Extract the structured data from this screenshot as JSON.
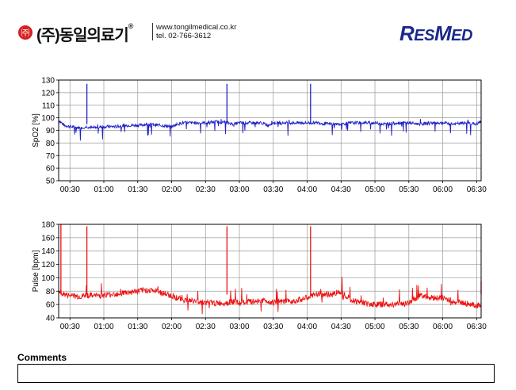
{
  "header": {
    "logo_symbol": "㈜",
    "company_name": "(주)동일의료기",
    "registered_mark": "®",
    "website": "www.tongilmedical.co.kr",
    "phone": "tel. 02-766-3612",
    "brand_logo": "RESMED",
    "brand_color": "#1b2a8a"
  },
  "comments": {
    "label": "Comments",
    "value": ""
  },
  "chart_data": [
    {
      "type": "line",
      "title": "",
      "xlabel": "",
      "ylabel": "SpO2 [%]",
      "ylim": [
        50,
        130
      ],
      "yticks": [
        50,
        60,
        70,
        80,
        90,
        100,
        110,
        120,
        130
      ],
      "xlim_minutes": [
        20,
        394
      ],
      "xticks": [
        "00:30",
        "01:00",
        "01:30",
        "02:00",
        "02:30",
        "03:00",
        "03:30",
        "04:00",
        "04:30",
        "05:00",
        "05:30",
        "06:00",
        "06:30"
      ],
      "grid": true,
      "series": [
        {
          "color": "#2020c8",
          "x": [
            "00:20",
            "00:25",
            "00:30",
            "00:40",
            "00:45",
            "00:50",
            "01:00",
            "01:10",
            "01:20",
            "01:30",
            "01:40",
            "01:50",
            "02:00",
            "02:05",
            "02:10",
            "02:20",
            "02:30",
            "02:40",
            "02:50",
            "02:55",
            "03:00",
            "03:10",
            "03:20",
            "03:25",
            "03:30",
            "03:40",
            "03:50",
            "04:00",
            "04:03",
            "04:10",
            "04:20",
            "04:30",
            "04:40",
            "04:50",
            "05:00",
            "05:10",
            "05:20",
            "05:30",
            "05:40",
            "05:50",
            "06:00",
            "06:10",
            "06:20",
            "06:30",
            "06:34"
          ],
          "values": [
            98,
            94,
            93,
            92,
            93,
            92,
            93,
            93,
            94,
            94,
            95,
            94,
            93,
            95,
            96,
            96,
            96,
            97,
            96,
            95,
            96,
            96,
            96,
            94,
            96,
            96,
            96,
            96,
            96,
            96,
            95,
            95,
            96,
            96,
            96,
            95,
            96,
            96,
            95,
            96,
            96,
            95,
            96,
            95,
            97
          ],
          "spikes": [
            {
              "x": "00:45",
              "value": 127
            },
            {
              "x": "02:49",
              "value": 127
            },
            {
              "x": "04:03",
              "value": 127
            }
          ]
        }
      ]
    },
    {
      "type": "line",
      "title": "",
      "xlabel": "",
      "ylabel": "Pulse [bpm]",
      "ylim": [
        40,
        180
      ],
      "yticks": [
        40,
        60,
        80,
        100,
        120,
        140,
        160,
        180
      ],
      "xlim_minutes": [
        20,
        394
      ],
      "xticks": [
        "00:30",
        "01:00",
        "01:30",
        "02:00",
        "02:30",
        "03:00",
        "03:30",
        "04:00",
        "04:30",
        "05:00",
        "05:30",
        "06:00",
        "06:30"
      ],
      "grid": true,
      "series": [
        {
          "color": "#ee1111",
          "x": [
            "00:20",
            "00:25",
            "00:30",
            "00:40",
            "00:45",
            "00:50",
            "01:00",
            "01:10",
            "01:20",
            "01:30",
            "01:40",
            "01:50",
            "02:00",
            "02:05",
            "02:10",
            "02:20",
            "02:30",
            "02:40",
            "02:50",
            "02:55",
            "03:00",
            "03:10",
            "03:20",
            "03:25",
            "03:30",
            "03:40",
            "03:50",
            "04:00",
            "04:03",
            "04:10",
            "04:20",
            "04:30",
            "04:40",
            "04:50",
            "05:00",
            "05:10",
            "05:20",
            "05:30",
            "05:40",
            "05:50",
            "06:00",
            "06:10",
            "06:20",
            "06:30",
            "06:34"
          ],
          "values": [
            80,
            75,
            73,
            72,
            74,
            73,
            74,
            76,
            78,
            80,
            82,
            78,
            73,
            70,
            67,
            65,
            63,
            62,
            63,
            64,
            62,
            64,
            66,
            65,
            63,
            64,
            66,
            70,
            72,
            76,
            74,
            80,
            66,
            62,
            60,
            60,
            61,
            62,
            74,
            70,
            70,
            64,
            62,
            58,
            60
          ],
          "spikes": [
            {
              "x": "00:22",
              "value": 180
            },
            {
              "x": "00:45",
              "value": 177
            },
            {
              "x": "02:49",
              "value": 177
            },
            {
              "x": "04:03",
              "value": 177
            },
            {
              "x": "06:34",
              "value": 95
            }
          ]
        }
      ]
    }
  ]
}
